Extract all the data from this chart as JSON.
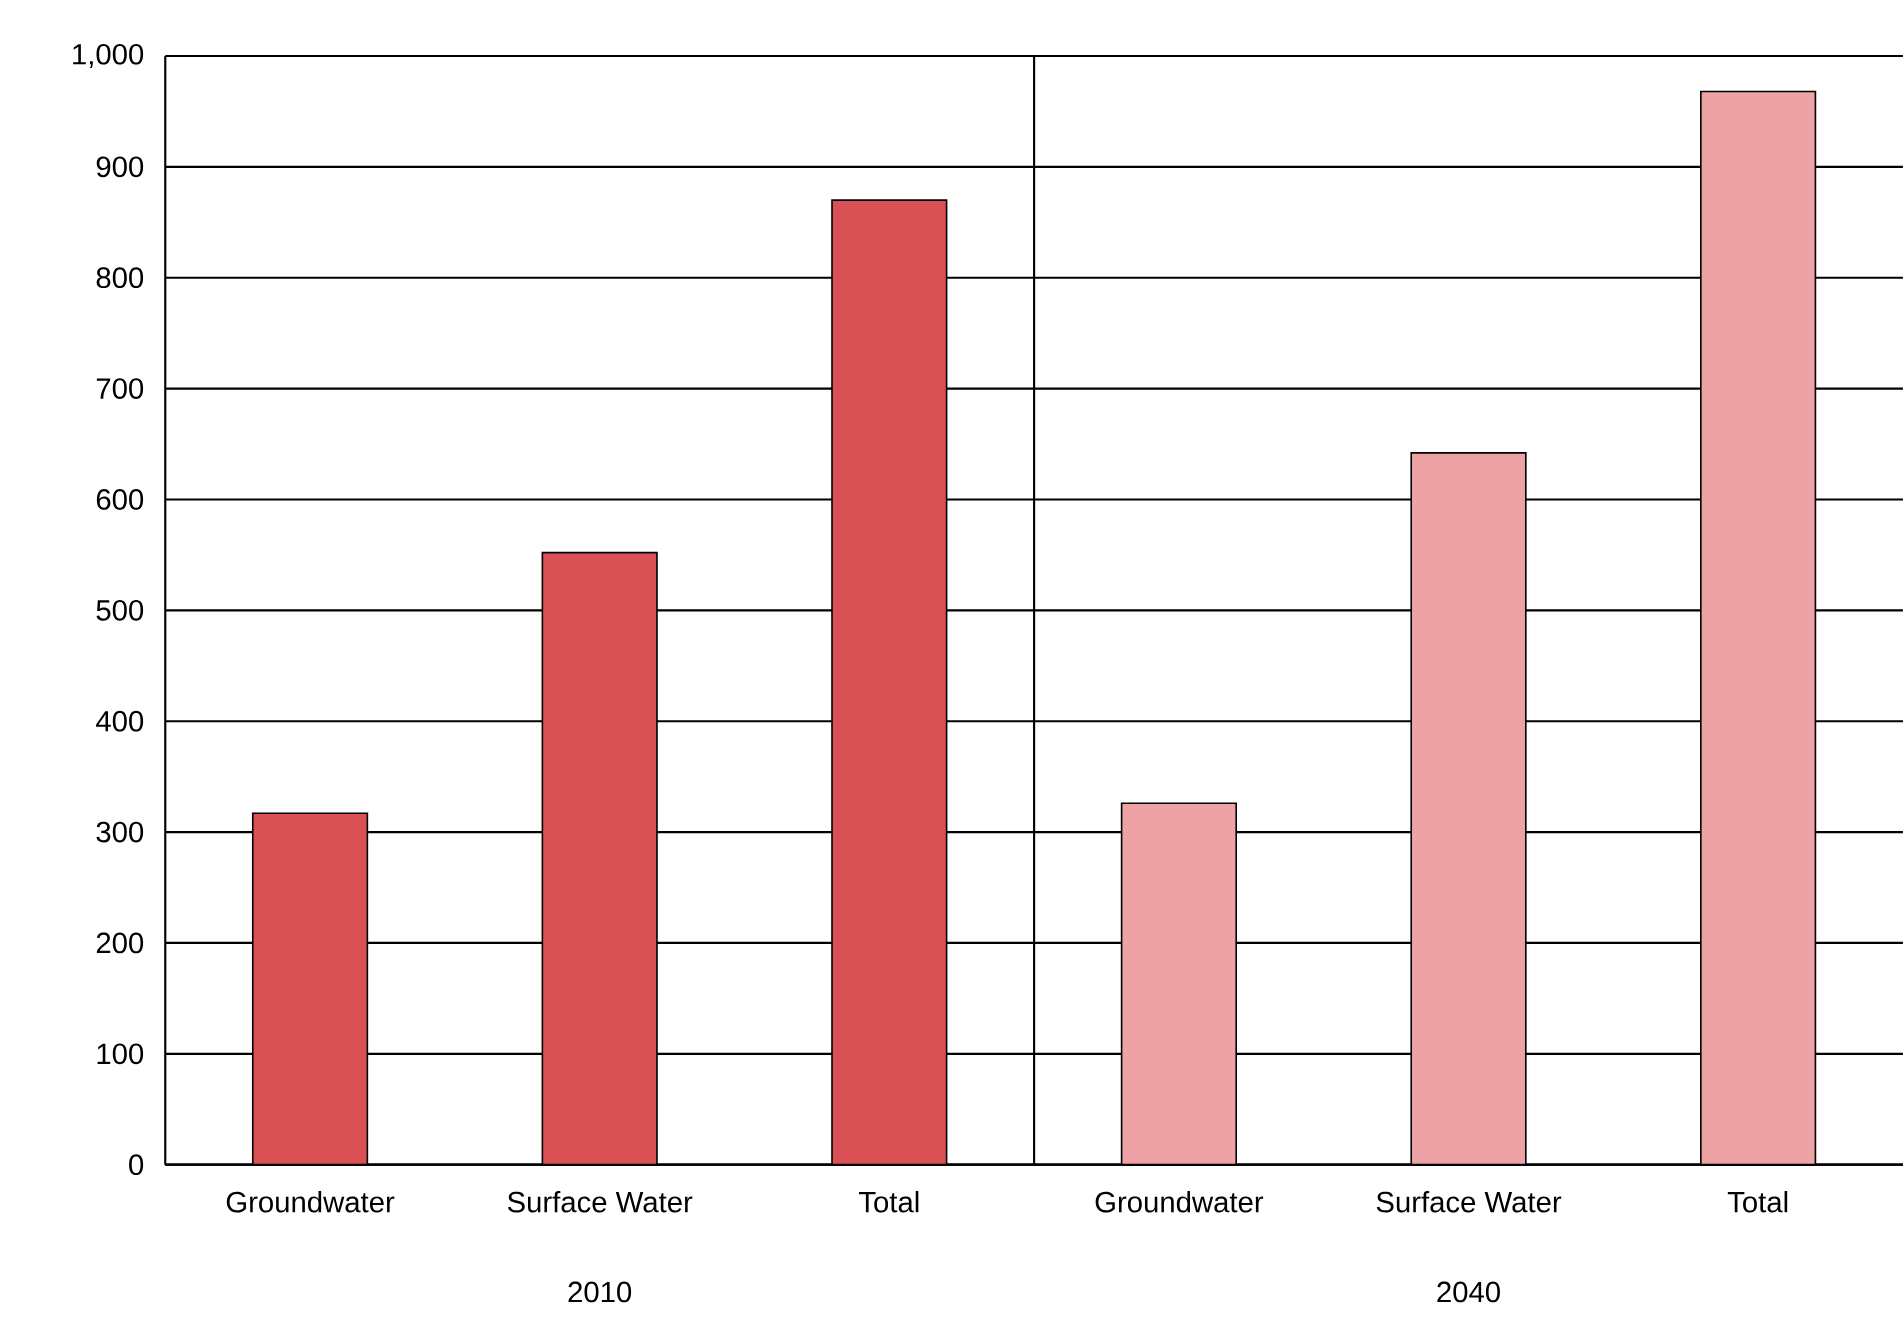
{
  "chart_data": {
    "type": "bar",
    "categories": [
      "Groundwater",
      "Surface Water",
      "Total",
      "Groundwater",
      "Surface Water",
      "Total"
    ],
    "values": [
      317,
      552,
      870,
      326,
      642,
      968
    ],
    "colors": [
      "#d95055",
      "#d95055",
      "#d95055",
      "#eda3a5",
      "#eda3a5",
      "#eda3a5"
    ],
    "ylim": [
      0,
      1000
    ],
    "yticks": [
      0,
      100,
      200,
      300,
      400,
      500,
      600,
      700,
      800,
      900,
      {
        "value": 1000,
        "label": "1,000"
      }
    ],
    "grid": "y",
    "annotations": [
      "2010",
      "2040"
    ]
  }
}
